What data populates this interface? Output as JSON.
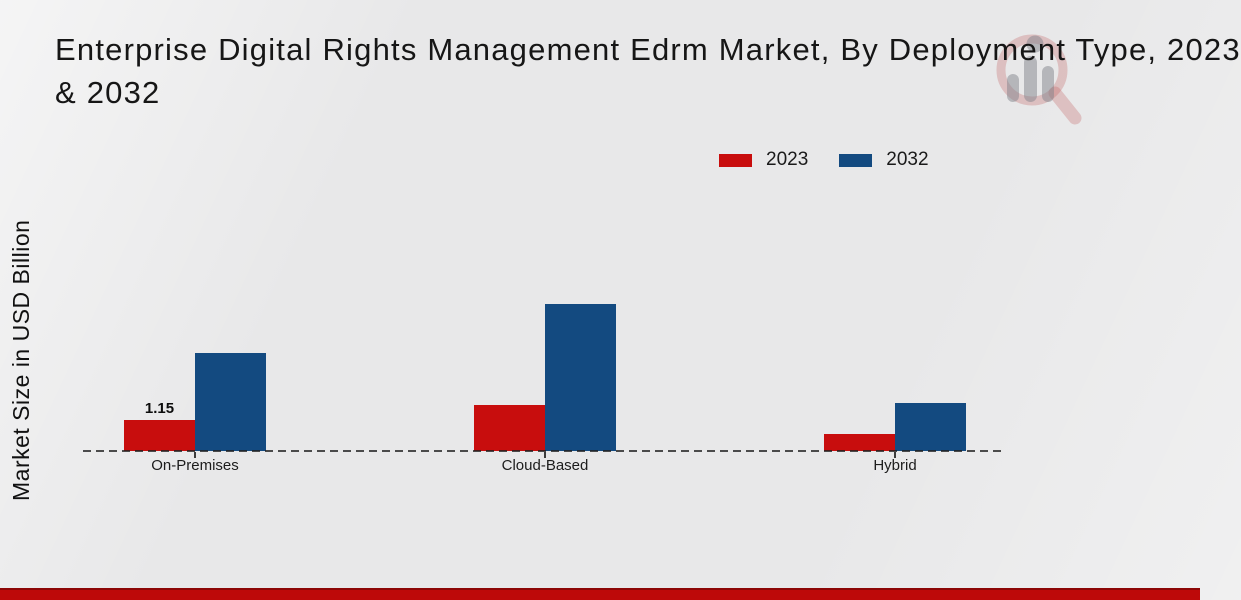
{
  "title": {
    "line1": "Enterprise Digital Rights Management Edrm Market, By Deployment Type, 2023",
    "line2": "& 2032",
    "full_text": "Enterprise Digital Rights Management Edrm Market, By Deployment Type, 2023 & 2032"
  },
  "y_axis_label": "Market Size in USD Billion",
  "legend": {
    "position": "top-right",
    "items": [
      {
        "label": "2023",
        "color": "#c80d0d"
      },
      {
        "label": "2032",
        "color": "#134a80"
      }
    ]
  },
  "colors": {
    "series_2023": "#c80d0d",
    "series_2032": "#134a80",
    "background": "#e8e8e9",
    "footer_band": "#bd0909",
    "footer_band_edge": "#8c0606",
    "axis_dash": "#2a2a2a",
    "text": "#161616"
  },
  "icons": {
    "watermark": "magnifier-bar-chart-logo-icon"
  },
  "chart_data": {
    "type": "bar",
    "title": "Enterprise Digital Rights Management Edrm Market, By Deployment Type, 2023 & 2032",
    "categories": [
      "On-Premises",
      "Cloud-Based",
      "Hybrid"
    ],
    "series": [
      {
        "name": "2023",
        "color": "#c80d0d",
        "values": [
          1.15,
          1.7,
          0.62
        ]
      },
      {
        "name": "2032",
        "color": "#134a80",
        "values": [
          3.6,
          5.4,
          1.75
        ]
      }
    ],
    "value_labels": [
      {
        "series": "2023",
        "category": "On-Premises",
        "text": "1.15"
      }
    ],
    "xlabel": "",
    "ylabel": "Market Size in USD Billion",
    "ylim": [
      0,
      6
    ],
    "grid": false,
    "y_axis_ticks_visible": false,
    "baseline_style": "dashed",
    "legend_position": "top-right"
  }
}
